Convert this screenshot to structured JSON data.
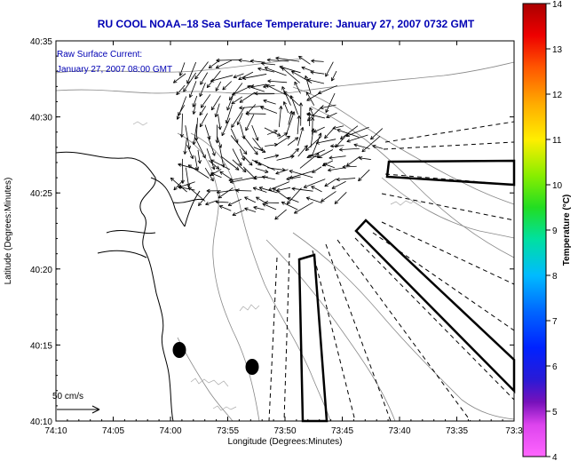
{
  "chart_data": {
    "type": "map",
    "title": "RU COOL  NOAA–18  Sea Surface Temperature:  January 27, 2007 0732 GMT",
    "annotation": [
      "Raw Surface Current:",
      "January 27, 2007 08:00 GMT"
    ],
    "xlabel": "Longitude (Degrees:Minutes)",
    "ylabel": "Latitude (Degrees:Minutes)",
    "xticks": [
      "74:10",
      "74:05",
      "74:00",
      "73:55",
      "73:50",
      "73:45",
      "73:40",
      "73:35",
      "73:3"
    ],
    "yticks": [
      "40:35",
      "40:30",
      "40:25",
      "40:20",
      "40:15",
      "40:10"
    ],
    "xlim_minutes_west": [
      -10,
      30
    ],
    "ylim_minutes": [
      10,
      35
    ],
    "scale_label": "50 cm/s",
    "colorbar": {
      "label": "Temperature (°C)",
      "ticks": [
        "4",
        "5",
        "6",
        "7",
        "8",
        "9",
        "10",
        "11",
        "12",
        "13",
        "14"
      ],
      "range": [
        4,
        14
      ]
    },
    "grid": false
  }
}
